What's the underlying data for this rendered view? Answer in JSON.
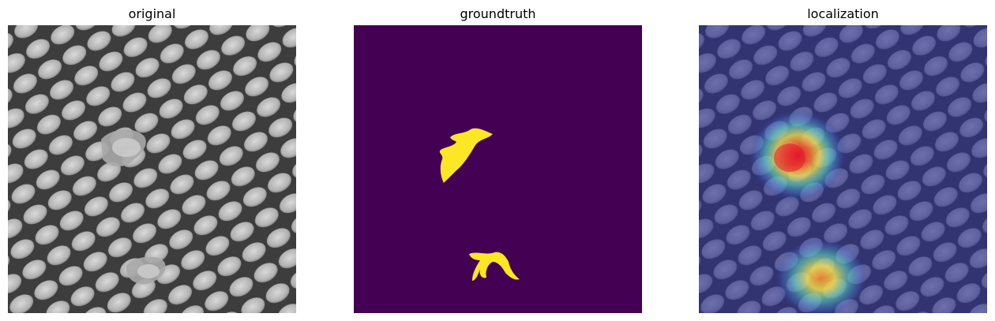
{
  "panels": [
    {
      "id": "original",
      "title": "original"
    },
    {
      "id": "groundtruth",
      "title": "groundtruth"
    },
    {
      "id": "localization",
      "title": "localization"
    }
  ],
  "colors": {
    "page_background": "#ffffff",
    "title_text": "#000000",
    "mask_background": "#440154",
    "mask_defect": "#fde725",
    "heatmap_base": "#2a2f8f",
    "heatmap_hot": "#e8162a",
    "heatmap_mid": "#ffe94a",
    "heatmap_cool": "#5fe0c7"
  }
}
